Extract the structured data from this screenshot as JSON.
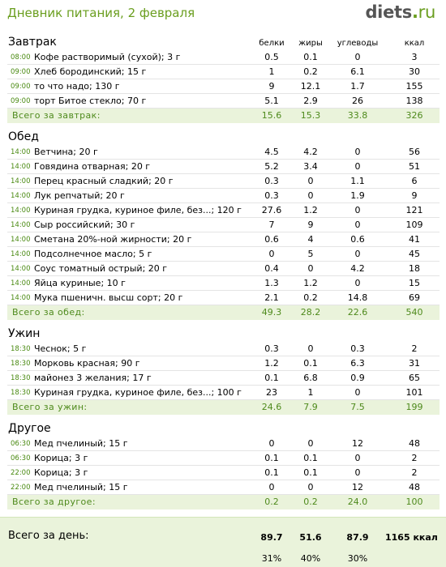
{
  "header": {
    "title": "Дневник питания, 2 февраля",
    "logo_main": "diets",
    "logo_dot": ".",
    "logo_tld": "ru"
  },
  "columns": {
    "protein": "белки",
    "fat": "жиры",
    "carbs": "углеводы",
    "kcal": "ккал"
  },
  "sections": [
    {
      "title": "Завтрак",
      "items": [
        {
          "time": "08:00",
          "name": "Кофе растворимый (сухой); 3 г",
          "protein": "0.5",
          "fat": "0.1",
          "carbs": "0",
          "kcal": "3"
        },
        {
          "time": "09:00",
          "name": "Хлеб бородинский; 15 г",
          "protein": "1",
          "fat": "0.2",
          "carbs": "6.1",
          "kcal": "30"
        },
        {
          "time": "09:00",
          "name": "то что надо; 130 г",
          "protein": "9",
          "fat": "12.1",
          "carbs": "1.7",
          "kcal": "155"
        },
        {
          "time": "09:00",
          "name": "торт Битое стекло; 70 г",
          "protein": "5.1",
          "fat": "2.9",
          "carbs": "26",
          "kcal": "138"
        }
      ],
      "total": {
        "label": "Всего за завтрак:",
        "protein": "15.6",
        "fat": "15.3",
        "carbs": "33.8",
        "kcal": "326"
      }
    },
    {
      "title": "Обед",
      "items": [
        {
          "time": "14:00",
          "name": "Ветчина; 20 г",
          "protein": "4.5",
          "fat": "4.2",
          "carbs": "0",
          "kcal": "56"
        },
        {
          "time": "14:00",
          "name": "Говядина отварная; 20 г",
          "protein": "5.2",
          "fat": "3.4",
          "carbs": "0",
          "kcal": "51"
        },
        {
          "time": "14:00",
          "name": "Перец красный сладкий; 20 г",
          "protein": "0.3",
          "fat": "0",
          "carbs": "1.1",
          "kcal": "6"
        },
        {
          "time": "14:00",
          "name": "Лук репчатый; 20 г",
          "protein": "0.3",
          "fat": "0",
          "carbs": "1.9",
          "kcal": "9"
        },
        {
          "time": "14:00",
          "name": "Куриная грудка, куриное филе, без...; 120 г",
          "protein": "27.6",
          "fat": "1.2",
          "carbs": "0",
          "kcal": "121"
        },
        {
          "time": "14:00",
          "name": "Сыр российский; 30 г",
          "protein": "7",
          "fat": "9",
          "carbs": "0",
          "kcal": "109"
        },
        {
          "time": "14:00",
          "name": "Сметана 20%-ной жирности; 20 г",
          "protein": "0.6",
          "fat": "4",
          "carbs": "0.6",
          "kcal": "41"
        },
        {
          "time": "14:00",
          "name": "Подсолнечное масло; 5 г",
          "protein": "0",
          "fat": "5",
          "carbs": "0",
          "kcal": "45"
        },
        {
          "time": "14:00",
          "name": "Соус томатный острый; 20 г",
          "protein": "0.4",
          "fat": "0",
          "carbs": "4.2",
          "kcal": "18"
        },
        {
          "time": "14:00",
          "name": "Яйца куриные; 10 г",
          "protein": "1.3",
          "fat": "1.2",
          "carbs": "0",
          "kcal": "15"
        },
        {
          "time": "14:00",
          "name": "Мука пшеничн. высш сорт; 20 г",
          "protein": "2.1",
          "fat": "0.2",
          "carbs": "14.8",
          "kcal": "69"
        }
      ],
      "total": {
        "label": "Всего за обед:",
        "protein": "49.3",
        "fat": "28.2",
        "carbs": "22.6",
        "kcal": "540"
      }
    },
    {
      "title": "Ужин",
      "items": [
        {
          "time": "18:30",
          "name": "Чеснок; 5 г",
          "protein": "0.3",
          "fat": "0",
          "carbs": "0.3",
          "kcal": "2"
        },
        {
          "time": "18:30",
          "name": "Морковь красная; 90 г",
          "protein": "1.2",
          "fat": "0.1",
          "carbs": "6.3",
          "kcal": "31"
        },
        {
          "time": "18:30",
          "name": "майонез 3 желания; 17 г",
          "protein": "0.1",
          "fat": "6.8",
          "carbs": "0.9",
          "kcal": "65"
        },
        {
          "time": "18:30",
          "name": "Куриная грудка, куриное филе, без...; 100 г",
          "protein": "23",
          "fat": "1",
          "carbs": "0",
          "kcal": "101"
        }
      ],
      "total": {
        "label": "Всего за ужин:",
        "protein": "24.6",
        "fat": "7.9",
        "carbs": "7.5",
        "kcal": "199"
      }
    },
    {
      "title": "Другое",
      "items": [
        {
          "time": "06:30",
          "name": "Мед пчелиный; 15 г",
          "protein": "0",
          "fat": "0",
          "carbs": "12",
          "kcal": "48"
        },
        {
          "time": "06:30",
          "name": "Корица; 3 г",
          "protein": "0.1",
          "fat": "0.1",
          "carbs": "0",
          "kcal": "2"
        },
        {
          "time": "22:00",
          "name": "Корица; 3 г",
          "protein": "0.1",
          "fat": "0.1",
          "carbs": "0",
          "kcal": "2"
        },
        {
          "time": "22:00",
          "name": "Мед пчелиный; 15 г",
          "protein": "0",
          "fat": "0",
          "carbs": "12",
          "kcal": "48"
        }
      ],
      "total": {
        "label": "Всего за другое:",
        "protein": "0.2",
        "fat": "0.2",
        "carbs": "24.0",
        "kcal": "100"
      }
    }
  ],
  "day_total": {
    "label": "Всего за день:",
    "protein": "89.7",
    "fat": "51.6",
    "carbs": "87.9",
    "kcal": "1165 ккал",
    "protein_pct": "31%",
    "fat_pct": "40%",
    "carbs_pct": "30%"
  }
}
